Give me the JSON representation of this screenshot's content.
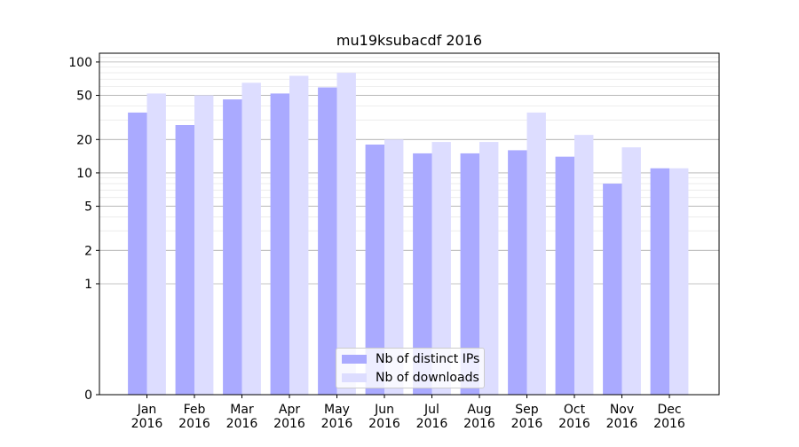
{
  "chart_data": {
    "type": "bar",
    "title": "mu19ksubacdf 2016",
    "xlabel": "",
    "ylabel": "",
    "y_scale": "symlog",
    "ylim": [
      0,
      120
    ],
    "y_ticks": [
      0,
      1,
      2,
      5,
      10,
      20,
      50,
      100
    ],
    "y_tick_labels": [
      "0",
      "1",
      "2",
      "5",
      "10",
      "20",
      "50",
      "100"
    ],
    "grid": true,
    "legend_position": "bottom-center",
    "categories": [
      "Jan 2016",
      "Feb 2016",
      "Mar 2016",
      "Apr 2016",
      "May 2016",
      "Jun 2016",
      "Jul 2016",
      "Aug 2016",
      "Sep 2016",
      "Oct 2016",
      "Nov 2016",
      "Dec 2016"
    ],
    "category_lines": [
      [
        "Jan",
        "2016"
      ],
      [
        "Feb",
        "2016"
      ],
      [
        "Mar",
        "2016"
      ],
      [
        "Apr",
        "2016"
      ],
      [
        "May",
        "2016"
      ],
      [
        "Jun",
        "2016"
      ],
      [
        "Jul",
        "2016"
      ],
      [
        "Aug",
        "2016"
      ],
      [
        "Sep",
        "2016"
      ],
      [
        "Oct",
        "2016"
      ],
      [
        "Nov",
        "2016"
      ],
      [
        "Dec",
        "2016"
      ]
    ],
    "series": [
      {
        "name": "Nb of distinct IPs",
        "color": "#aaaaff",
        "values": [
          35,
          27,
          46,
          52,
          59,
          18,
          15,
          15,
          16,
          14,
          8,
          11
        ]
      },
      {
        "name": "Nb of downloads",
        "color": "#ddddff",
        "values": [
          52,
          50,
          65,
          75,
          80,
          20,
          19,
          19,
          35,
          22,
          17,
          11
        ]
      }
    ]
  }
}
